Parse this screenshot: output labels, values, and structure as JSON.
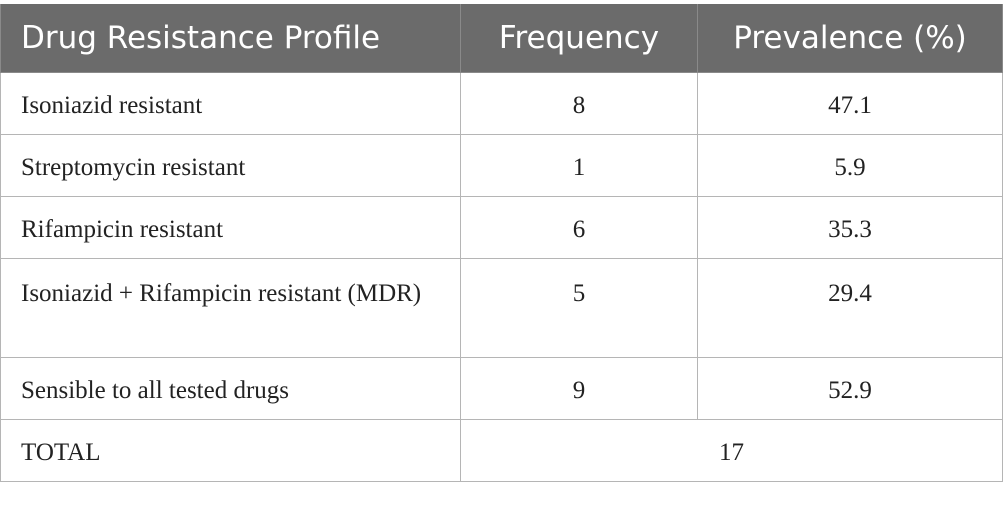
{
  "table": {
    "headers": {
      "profile": "Drug Resistance Profile",
      "frequency": "Frequency",
      "prevalence": "Prevalence (%)"
    },
    "rows": [
      {
        "profile": "Isoniazid resistant",
        "frequency": "8",
        "prevalence": "47.1"
      },
      {
        "profile": "Streptomycin resistant",
        "frequency": "1",
        "prevalence": "5.9"
      },
      {
        "profile": "Rifampicin resistant",
        "frequency": "6",
        "prevalence": "35.3"
      },
      {
        "profile": "Isoniazid + Rifampicin resistant (MDR)",
        "frequency": "5",
        "prevalence": "29.4"
      },
      {
        "profile": "Sensible to all tested drugs",
        "frequency": "9",
        "prevalence": "52.9"
      }
    ],
    "total": {
      "label": "TOTAL",
      "value": "17"
    }
  }
}
